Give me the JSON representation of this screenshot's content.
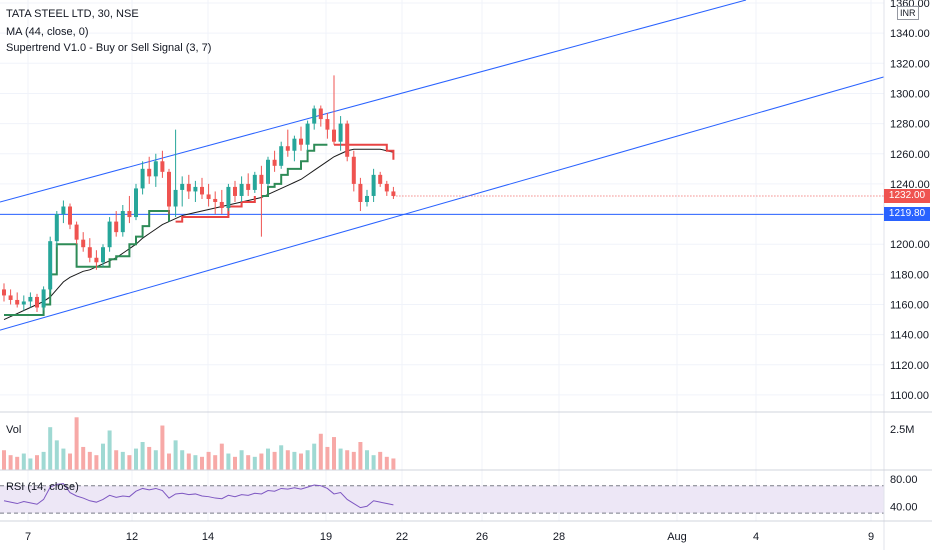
{
  "header": {
    "symbol_line": "TATA STEEL LTD, 30, NSE",
    "ma_line": "MA (44, close, 0)",
    "supertrend_line": "Supertrend V1.0 - Buy or Sell Signal (3, 7)",
    "currency": "INR"
  },
  "price_axis": {
    "ticks": [
      "1360.00",
      "1340.00",
      "1320.00",
      "1300.00",
      "1280.00",
      "1260.00",
      "1240.00",
      "1220.00",
      "1200.00",
      "1180.00",
      "1160.00",
      "1140.00",
      "1120.00",
      "1100.00"
    ],
    "last_price_label": "1232.00",
    "hline_label": "1219.80"
  },
  "volume_pane": {
    "label": "Vol",
    "tick": "2.5M"
  },
  "rsi_pane": {
    "label": "RSI (14, close)",
    "ticks": [
      "80.00",
      "40.00"
    ]
  },
  "time_axis": {
    "ticks": [
      "7",
      "12",
      "14",
      "19",
      "22",
      "26",
      "28",
      "Aug",
      "4",
      "9"
    ]
  },
  "colors": {
    "up": "#26a69a",
    "down": "#ef5350",
    "ma": "#1a1a1a",
    "supertrend_up": "#2e8b57",
    "supertrend_down": "#e84444",
    "channel": "#2962ff",
    "hline": "#2962ff",
    "rsi_fill": "#ede7f6",
    "rsi_line": "#7e57c2"
  },
  "chart_data": {
    "type": "candlestick",
    "ylim": [
      1090,
      1362
    ],
    "last_price": 1232,
    "horizontal_line": 1219.8,
    "candles": [
      {
        "o": 1170,
        "h": 1174,
        "l": 1162,
        "c": 1166
      },
      {
        "o": 1166,
        "h": 1170,
        "l": 1160,
        "c": 1163
      },
      {
        "o": 1163,
        "h": 1168,
        "l": 1158,
        "c": 1160
      },
      {
        "o": 1160,
        "h": 1166,
        "l": 1156,
        "c": 1162
      },
      {
        "o": 1162,
        "h": 1168,
        "l": 1158,
        "c": 1165
      },
      {
        "o": 1165,
        "h": 1167,
        "l": 1155,
        "c": 1158
      },
      {
        "o": 1158,
        "h": 1172,
        "l": 1156,
        "c": 1170
      },
      {
        "o": 1170,
        "h": 1205,
        "l": 1168,
        "c": 1202
      },
      {
        "o": 1202,
        "h": 1222,
        "l": 1198,
        "c": 1220
      },
      {
        "o": 1220,
        "h": 1229,
        "l": 1214,
        "c": 1225
      },
      {
        "o": 1225,
        "h": 1227,
        "l": 1210,
        "c": 1213
      },
      {
        "o": 1213,
        "h": 1215,
        "l": 1200,
        "c": 1203
      },
      {
        "o": 1203,
        "h": 1208,
        "l": 1195,
        "c": 1198
      },
      {
        "o": 1198,
        "h": 1204,
        "l": 1188,
        "c": 1191
      },
      {
        "o": 1191,
        "h": 1196,
        "l": 1183,
        "c": 1188
      },
      {
        "o": 1188,
        "h": 1200,
        "l": 1185,
        "c": 1198
      },
      {
        "o": 1198,
        "h": 1218,
        "l": 1195,
        "c": 1215
      },
      {
        "o": 1215,
        "h": 1222,
        "l": 1205,
        "c": 1208
      },
      {
        "o": 1208,
        "h": 1226,
        "l": 1205,
        "c": 1222
      },
      {
        "o": 1222,
        "h": 1232,
        "l": 1214,
        "c": 1218
      },
      {
        "o": 1218,
        "h": 1240,
        "l": 1216,
        "c": 1237
      },
      {
        "o": 1237,
        "h": 1255,
        "l": 1233,
        "c": 1250
      },
      {
        "o": 1250,
        "h": 1258,
        "l": 1240,
        "c": 1245
      },
      {
        "o": 1245,
        "h": 1260,
        "l": 1238,
        "c": 1255
      },
      {
        "o": 1255,
        "h": 1262,
        "l": 1244,
        "c": 1248
      },
      {
        "o": 1248,
        "h": 1250,
        "l": 1220,
        "c": 1225
      },
      {
        "o": 1225,
        "h": 1276,
        "l": 1218,
        "c": 1236
      },
      {
        "o": 1236,
        "h": 1245,
        "l": 1225,
        "c": 1240
      },
      {
        "o": 1240,
        "h": 1246,
        "l": 1230,
        "c": 1235
      },
      {
        "o": 1235,
        "h": 1242,
        "l": 1228,
        "c": 1238
      },
      {
        "o": 1238,
        "h": 1244,
        "l": 1230,
        "c": 1233
      },
      {
        "o": 1233,
        "h": 1240,
        "l": 1225,
        "c": 1230
      },
      {
        "o": 1230,
        "h": 1235,
        "l": 1220,
        "c": 1228
      },
      {
        "o": 1228,
        "h": 1236,
        "l": 1220,
        "c": 1224
      },
      {
        "o": 1224,
        "h": 1240,
        "l": 1222,
        "c": 1238
      },
      {
        "o": 1238,
        "h": 1242,
        "l": 1228,
        "c": 1232
      },
      {
        "o": 1232,
        "h": 1245,
        "l": 1228,
        "c": 1240
      },
      {
        "o": 1240,
        "h": 1247,
        "l": 1232,
        "c": 1236
      },
      {
        "o": 1236,
        "h": 1248,
        "l": 1234,
        "c": 1246
      },
      {
        "o": 1246,
        "h": 1252,
        "l": 1205,
        "c": 1240
      },
      {
        "o": 1240,
        "h": 1258,
        "l": 1238,
        "c": 1256
      },
      {
        "o": 1256,
        "h": 1262,
        "l": 1248,
        "c": 1252
      },
      {
        "o": 1252,
        "h": 1268,
        "l": 1250,
        "c": 1265
      },
      {
        "o": 1265,
        "h": 1276,
        "l": 1258,
        "c": 1262
      },
      {
        "o": 1262,
        "h": 1272,
        "l": 1255,
        "c": 1270
      },
      {
        "o": 1270,
        "h": 1278,
        "l": 1262,
        "c": 1266
      },
      {
        "o": 1266,
        "h": 1282,
        "l": 1262,
        "c": 1280
      },
      {
        "o": 1280,
        "h": 1292,
        "l": 1276,
        "c": 1290
      },
      {
        "o": 1290,
        "h": 1292,
        "l": 1278,
        "c": 1283
      },
      {
        "o": 1283,
        "h": 1287,
        "l": 1270,
        "c": 1276
      },
      {
        "o": 1276,
        "h": 1312,
        "l": 1266,
        "c": 1268
      },
      {
        "o": 1268,
        "h": 1285,
        "l": 1262,
        "c": 1280
      },
      {
        "o": 1280,
        "h": 1282,
        "l": 1255,
        "c": 1258
      },
      {
        "o": 1258,
        "h": 1262,
        "l": 1235,
        "c": 1240
      },
      {
        "o": 1240,
        "h": 1244,
        "l": 1222,
        "c": 1228
      },
      {
        "o": 1228,
        "h": 1236,
        "l": 1225,
        "c": 1232
      },
      {
        "o": 1232,
        "h": 1250,
        "l": 1228,
        "c": 1246
      },
      {
        "o": 1246,
        "h": 1248,
        "l": 1238,
        "c": 1240
      },
      {
        "o": 1240,
        "h": 1242,
        "l": 1232,
        "c": 1235
      },
      {
        "o": 1235,
        "h": 1238,
        "l": 1230,
        "c": 1232
      }
    ],
    "moving_average": [
      1150,
      1152,
      1154,
      1156,
      1158,
      1160,
      1162,
      1165,
      1170,
      1175,
      1178,
      1180,
      1182,
      1183,
      1185,
      1187,
      1189,
      1191,
      1194,
      1197,
      1200,
      1204,
      1207,
      1210,
      1213,
      1215,
      1217,
      1219,
      1220,
      1221,
      1222,
      1223,
      1224,
      1225,
      1226,
      1227,
      1228,
      1229,
      1230,
      1231,
      1233,
      1235,
      1237,
      1239,
      1241,
      1243,
      1246,
      1249,
      1252,
      1255,
      1258,
      1260,
      1262,
      1263,
      1263,
      1263,
      1263,
      1263,
      1262,
      1261
    ],
    "supertrend": [
      1153,
      1153,
      1153,
      1153,
      1153,
      1153,
      1160,
      1180,
      1200,
      1200,
      1200,
      1185,
      1185,
      1185,
      1185,
      1185,
      1190,
      1192,
      1192,
      1200,
      1205,
      1212,
      1222,
      1222,
      1222,
      1215,
      1215,
      1218,
      1218,
      1218,
      1218,
      1218,
      1218,
      1218,
      1225,
      1225,
      1228,
      1228,
      1232,
      1232,
      1238,
      1240,
      1246,
      1250,
      1250,
      1255,
      1262,
      1266,
      1266,
      1266,
      1266,
      1266,
      1266,
      1266,
      1266,
      1266,
      1266,
      1266,
      1262,
      1256
    ],
    "supertrend_red_segments": [
      [
        26,
        38
      ],
      [
        50,
        59
      ]
    ],
    "volume_millions": [
      1.2,
      0.9,
      0.8,
      1.0,
      0.7,
      0.9,
      1.1,
      2.6,
      1.8,
      1.3,
      1.0,
      3.2,
      1.4,
      1.1,
      0.9,
      1.6,
      2.4,
      1.2,
      1.1,
      0.9,
      1.3,
      1.7,
      1.4,
      1.2,
      2.7,
      1.0,
      1.8,
      1.2,
      1.0,
      0.9,
      0.8,
      1.1,
      0.9,
      1.6,
      1.0,
      0.8,
      1.2,
      0.9,
      0.8,
      1.0,
      1.3,
      1.1,
      1.5,
      1.2,
      1.1,
      1.0,
      1.2,
      1.6,
      2.2,
      1.4,
      2.0,
      1.3,
      1.2,
      1.1,
      1.7,
      1.2,
      0.9,
      1.1,
      0.8,
      0.7
    ],
    "rsi": [
      48,
      46,
      44,
      47,
      45,
      43,
      50,
      68,
      72,
      73,
      60,
      55,
      52,
      48,
      46,
      50,
      56,
      53,
      55,
      54,
      62,
      66,
      64,
      66,
      63,
      52,
      58,
      59,
      57,
      58,
      55,
      54,
      52,
      51,
      56,
      54,
      57,
      56,
      59,
      58,
      63,
      62,
      66,
      65,
      67,
      65,
      68,
      71,
      70,
      66,
      58,
      60,
      50,
      44,
      38,
      40,
      48,
      46,
      44,
      42
    ],
    "channel_upper": [
      [
        0,
        1228
      ],
      [
        56,
        1312
      ],
      [
        746,
        1362
      ]
    ],
    "channel_lower": [
      [
        0,
        1143
      ],
      [
        884,
        1311
      ]
    ],
    "channel_middle_segment": [
      [
        0,
        1228
      ]
    ],
    "rsi_ylim": [
      20,
      90
    ],
    "volume_max_millions": 3.4
  }
}
